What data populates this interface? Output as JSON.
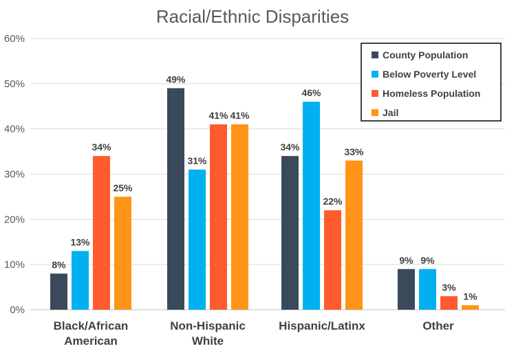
{
  "chart_data": {
    "type": "bar",
    "title": "Racial/Ethnic Disparities",
    "xlabel": "",
    "ylabel": "",
    "ylim": [
      0,
      60
    ],
    "y_ticks": [
      "0%",
      "10%",
      "20%",
      "30%",
      "40%",
      "50%",
      "60%"
    ],
    "categories": [
      [
        "Black/African",
        "American"
      ],
      [
        "Non-Hispanic",
        "White"
      ],
      [
        "Hispanic/Latinx"
      ],
      [
        "Other"
      ]
    ],
    "series": [
      {
        "name": "County Population",
        "color": "#3b4a5a",
        "values": [
          8,
          49,
          34,
          9
        ]
      },
      {
        "name": "Below Poverty Level",
        "color": "#00b0f0",
        "values": [
          13,
          31,
          46,
          9
        ]
      },
      {
        "name": "Homeless Population",
        "color": "#ff5b2e",
        "values": [
          34,
          41,
          22,
          3
        ]
      },
      {
        "name": "Jail",
        "color": "#ff9418",
        "values": [
          25,
          41,
          33,
          1
        ]
      }
    ],
    "value_suffix": "%",
    "grid": true,
    "legend_position": "top-right"
  }
}
